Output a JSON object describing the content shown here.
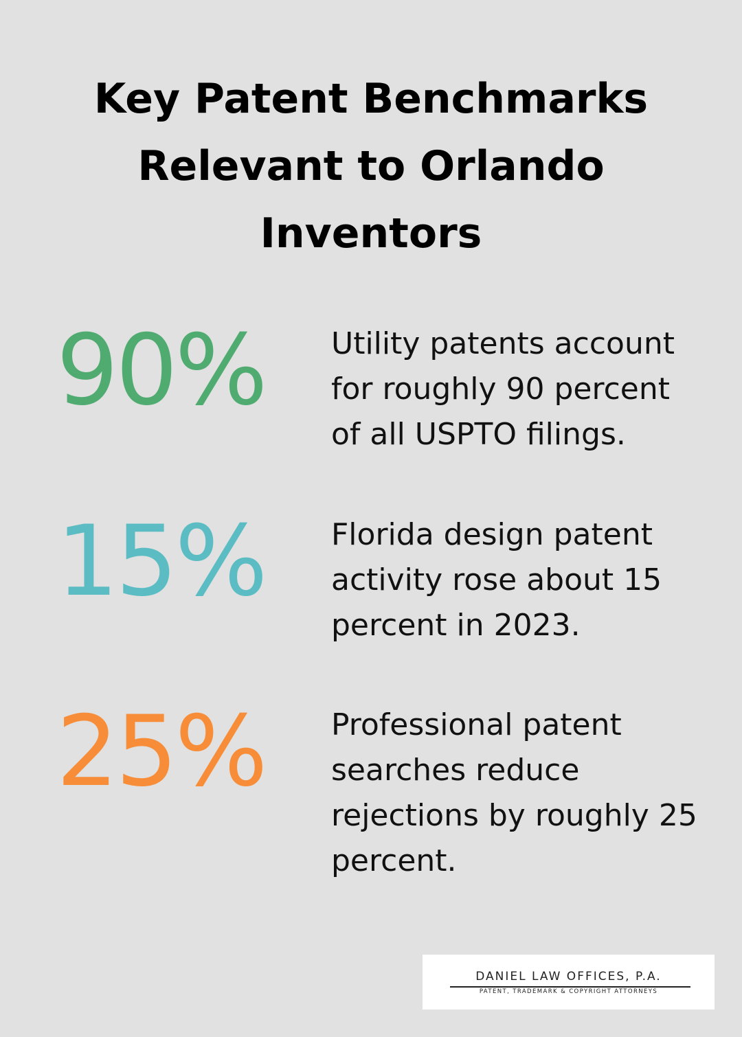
{
  "header": {
    "title": "Key Patent Benchmarks Relevant to Orlando Inventors"
  },
  "stats": [
    {
      "value": "90%",
      "text": "Utility patents account for roughly 90 percent of all USPTO filings."
    },
    {
      "value": "15%",
      "text": "Florida design patent activity rose about 15 percent in 2023."
    },
    {
      "value": "25%",
      "text": "Professional patent searches reduce rejections by roughly 25 percent."
    }
  ],
  "logo": {
    "name": "DANIEL LAW OFFICES, P.A.",
    "tagline": "PATENT, TRADEMARK & COPYRIGHT ATTORNEYS"
  }
}
